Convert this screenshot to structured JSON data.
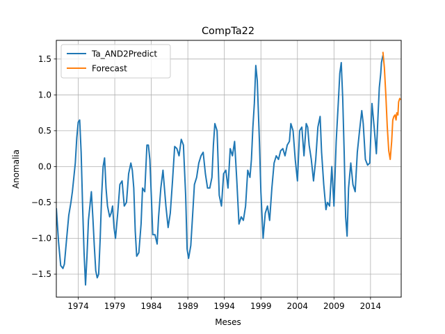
{
  "chart_data": {
    "type": "line",
    "title": "CompTa22",
    "xlabel": "Meses",
    "ylabel": "Anomalia",
    "xlim": [
      1971.0,
      2018.2
    ],
    "ylim": [
      -1.82,
      1.76
    ],
    "grid": true,
    "legend_position": "top-left",
    "x_ticks": [
      1974,
      1979,
      1984,
      1989,
      1994,
      1999,
      2004,
      2009,
      2014
    ],
    "x_tick_labels": [
      "1974",
      "1979",
      "1984",
      "1989",
      "1994",
      "1999",
      "2004",
      "2009",
      "2014"
    ],
    "y_ticks": [
      -1.5,
      -1.0,
      -0.5,
      0.0,
      0.5,
      1.0,
      1.5
    ],
    "y_tick_labels": [
      "−1.5",
      "−1.0",
      "−0.5",
      "0.0",
      "0.5",
      "1.0",
      "1.5"
    ],
    "series": [
      {
        "name": "Ta_AND2Predict",
        "color": "#1f77b4",
        "x": [
          1971.0,
          1971.3,
          1971.6,
          1971.9,
          1972.1,
          1972.4,
          1972.7,
          1973.0,
          1973.2,
          1973.4,
          1973.6,
          1973.8,
          1974.0,
          1974.2,
          1974.4,
          1974.6,
          1974.8,
          1975.0,
          1975.2,
          1975.4,
          1975.6,
          1975.8,
          1976.0,
          1976.2,
          1976.4,
          1976.6,
          1976.8,
          1977.0,
          1977.2,
          1977.4,
          1977.6,
          1977.8,
          1978.0,
          1978.3,
          1978.5,
          1978.7,
          1978.9,
          1979.1,
          1979.4,
          1979.7,
          1980.0,
          1980.3,
          1980.6,
          1980.9,
          1981.2,
          1981.4,
          1981.6,
          1981.8,
          1982.0,
          1982.3,
          1982.6,
          1982.8,
          1983.1,
          1983.4,
          1983.6,
          1983.8,
          1984.0,
          1984.2,
          1984.5,
          1984.8,
          1985.0,
          1985.3,
          1985.6,
          1985.8,
          1986.0,
          1986.3,
          1986.6,
          1986.9,
          1987.2,
          1987.5,
          1987.8,
          1988.1,
          1988.4,
          1988.7,
          1988.9,
          1989.1,
          1989.4,
          1989.7,
          1989.9,
          1990.2,
          1990.5,
          1990.8,
          1991.1,
          1991.4,
          1991.7,
          1992.0,
          1992.3,
          1992.5,
          1992.7,
          1993.0,
          1993.3,
          1993.6,
          1993.9,
          1994.2,
          1994.5,
          1994.8,
          1995.1,
          1995.4,
          1995.7,
          1996.0,
          1996.3,
          1996.6,
          1996.9,
          1997.2,
          1997.5,
          1997.7,
          1997.9,
          1998.1,
          1998.3,
          1998.5,
          1998.8,
          1999.0,
          1999.3,
          1999.6,
          1999.9,
          2000.2,
          2000.5,
          2000.8,
          2001.1,
          2001.4,
          2001.7,
          2002.0,
          2002.3,
          2002.6,
          2002.9,
          2003.1,
          2003.4,
          2003.7,
          2004.0,
          2004.3,
          2004.6,
          2004.9,
          2005.2,
          2005.4,
          2005.6,
          2005.9,
          2006.2,
          2006.5,
          2006.8,
          2007.1,
          2007.3,
          2007.6,
          2007.9,
          2008.1,
          2008.4,
          2008.7,
          2009.0,
          2009.3,
          2009.6,
          2009.8,
          2010.0,
          2010.2,
          2010.4,
          2010.6,
          2010.8,
          2011.0,
          2011.3,
          2011.6,
          2011.9,
          2012.2,
          2012.5,
          2012.8,
          2013.0,
          2013.3,
          2013.6,
          2013.9,
          2014.2,
          2014.5,
          2014.8,
          2015.0,
          2015.2,
          2015.4,
          2015.5,
          2015.7
        ],
        "y": [
          -0.58,
          -1.05,
          -1.38,
          -1.42,
          -1.36,
          -1.02,
          -0.68,
          -0.5,
          -0.35,
          -0.15,
          0.05,
          0.4,
          0.62,
          0.65,
          0.2,
          -0.55,
          -1.2,
          -1.65,
          -1.25,
          -0.75,
          -0.55,
          -0.35,
          -0.7,
          -1.1,
          -1.45,
          -1.55,
          -1.5,
          -1.0,
          -0.4,
          0.0,
          0.12,
          -0.3,
          -0.55,
          -0.7,
          -0.65,
          -0.55,
          -0.85,
          -1.0,
          -0.65,
          -0.25,
          -0.2,
          -0.55,
          -0.5,
          -0.1,
          0.05,
          -0.05,
          -0.3,
          -0.9,
          -1.25,
          -1.2,
          -0.8,
          -0.3,
          -0.35,
          0.3,
          0.3,
          0.1,
          -0.4,
          -0.95,
          -0.95,
          -1.08,
          -0.7,
          -0.3,
          -0.05,
          -0.3,
          -0.55,
          -0.85,
          -0.65,
          -0.2,
          0.28,
          0.25,
          0.15,
          0.38,
          0.3,
          -0.4,
          -1.15,
          -1.28,
          -1.1,
          -0.6,
          -0.25,
          -0.15,
          0.05,
          0.15,
          0.2,
          -0.1,
          -0.3,
          -0.3,
          -0.15,
          0.3,
          0.6,
          0.5,
          -0.4,
          -0.55,
          -0.1,
          -0.05,
          -0.3,
          0.25,
          0.15,
          0.35,
          -0.2,
          -0.8,
          -0.7,
          -0.75,
          -0.55,
          -0.05,
          -0.15,
          0.1,
          0.55,
          0.88,
          1.41,
          1.2,
          0.35,
          -0.35,
          -1.0,
          -0.65,
          -0.55,
          -0.75,
          -0.3,
          0.05,
          0.15,
          0.1,
          0.22,
          0.25,
          0.15,
          0.3,
          0.35,
          0.6,
          0.5,
          0.1,
          -0.2,
          0.5,
          0.55,
          0.15,
          0.6,
          0.55,
          0.3,
          0.1,
          -0.2,
          0.1,
          0.55,
          0.7,
          0.2,
          -0.25,
          -0.6,
          -0.5,
          -0.55,
          0.0,
          -0.55,
          0.35,
          0.9,
          1.3,
          1.45,
          0.95,
          0.2,
          -0.7,
          -0.97,
          -0.3,
          0.05,
          -0.25,
          -0.35,
          0.2,
          0.5,
          0.78,
          0.6,
          0.1,
          0.02,
          0.05,
          0.88,
          0.55,
          0.18,
          0.65,
          1.1,
          1.3,
          1.45,
          1.55
        ]
      },
      {
        "name": "Forecast",
        "color": "#ff7f0e",
        "x": [
          2015.7,
          2015.9,
          2016.1,
          2016.3,
          2016.5,
          2016.7,
          2016.9,
          2017.05,
          2017.2,
          2017.35,
          2017.5,
          2017.6,
          2017.75,
          2017.85,
          2018.0,
          2018.1
        ],
        "y": [
          1.6,
          1.38,
          1.0,
          0.55,
          0.22,
          0.1,
          0.35,
          0.65,
          0.7,
          0.72,
          0.65,
          0.75,
          0.72,
          0.9,
          0.95,
          0.93
        ]
      }
    ]
  }
}
